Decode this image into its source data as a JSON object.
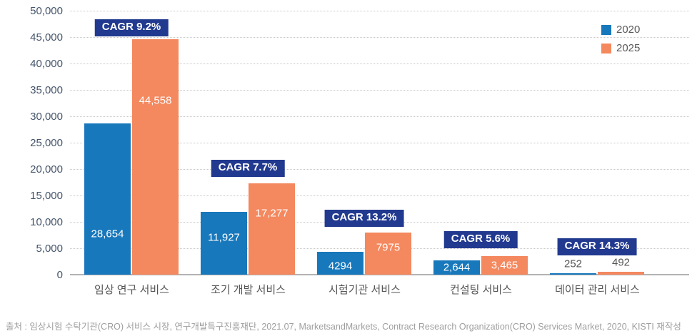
{
  "chart_data": {
    "type": "bar",
    "categories": [
      "임상 연구 서비스",
      "조기 개발 서비스",
      "시험기관 서비스",
      "컨설팅 서비스",
      "데이터 관리 서비스"
    ],
    "series": [
      {
        "name": "2020",
        "color": "#1878bc",
        "values": [
          28654,
          11927,
          4294,
          2644,
          252
        ],
        "value_labels": [
          "28,654",
          "11,927",
          "4294",
          "2,644",
          "252"
        ]
      },
      {
        "name": "2025",
        "color": "#f4885e",
        "values": [
          44558,
          17277,
          7975,
          3465,
          492
        ],
        "value_labels": [
          "44,558",
          "17,277",
          "7975",
          "3,465",
          "492"
        ]
      }
    ],
    "cagr_labels": [
      "CAGR 9.2%",
      "CAGR 7.7%",
      "CAGR 13.2%",
      "CAGR 5.6%",
      "CAGR 14.3%"
    ],
    "value_label_position": [
      "inside",
      "inside",
      "inside",
      "inside",
      "outside"
    ],
    "title": "",
    "xlabel": "",
    "ylabel": "",
    "ylim": [
      0,
      50000
    ],
    "ytick_step": 5000,
    "ytick_labels": [
      "0",
      "5,000",
      "10,000",
      "15,000",
      "20,000",
      "25,000",
      "30,000",
      "35,000",
      "40,000",
      "45,000",
      "50,000"
    ],
    "grid": "horizontal-dotted",
    "legend_position": "top-right"
  },
  "colors": {
    "bar_2020": "#1878bc",
    "bar_2025": "#f4885e",
    "cagr_badge_bg": "#21398f",
    "cagr_badge_text": "#ffffff",
    "axis_tick_label": "#44546a",
    "category_label": "#555555",
    "gridline": "#c9c9c9",
    "baseline": "#b3b3b3"
  },
  "source_text": "출처 : 임상시험 수탁기관(CRO) 서비스 시장, 연구개발특구진흥재단, 2021.07, MarketsandMarkets, Contract Research Organization(CRO) Services Market, 2020, KISTI 재작성"
}
